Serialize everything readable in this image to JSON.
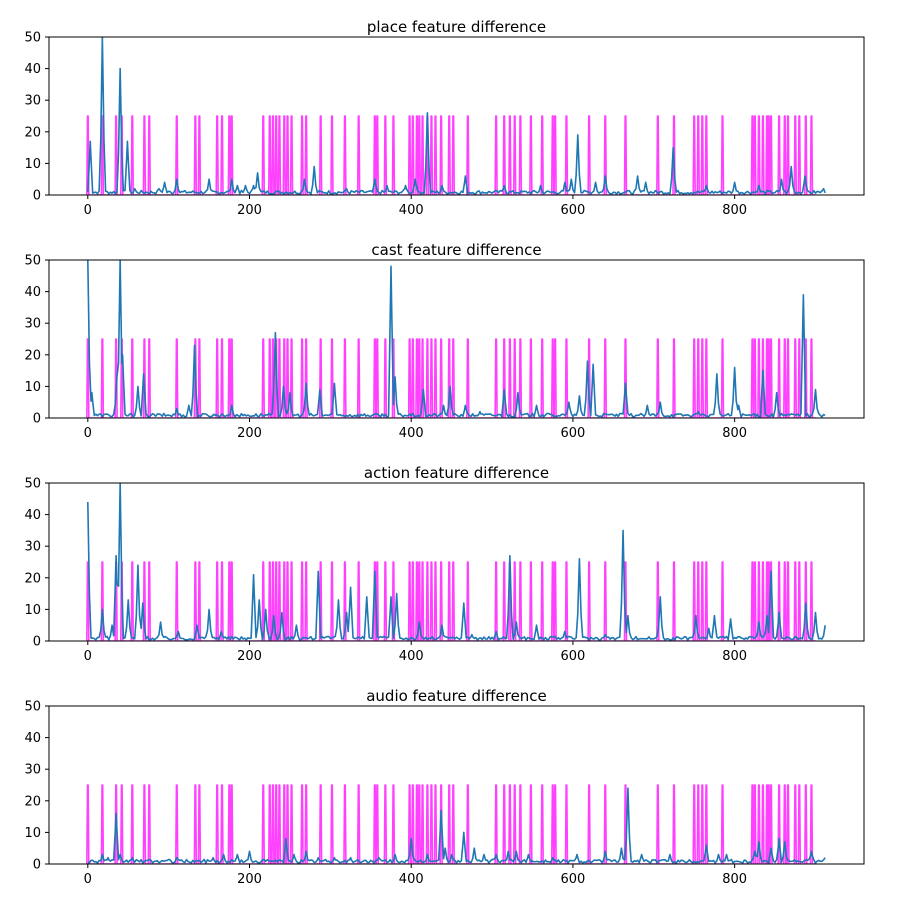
{
  "chart_data": [
    {
      "type": "line",
      "title": "place feature difference",
      "xlim": [
        -48,
        960
      ],
      "ylim": [
        0,
        50
      ],
      "xticks": [
        0,
        200,
        400,
        600,
        800
      ],
      "yticks": [
        0,
        10,
        20,
        30,
        40,
        50
      ],
      "colors": {
        "feature": "#1f77b4",
        "boundary": "#ff00ff"
      },
      "series": [
        {
          "values_role": "feature",
          "x_max": 912,
          "baseline": 0.8,
          "peaks": [
            [
              3,
              17
            ],
            [
              18,
              52
            ],
            [
              40,
              40
            ],
            [
              49,
              17
            ],
            [
              58,
              2
            ],
            [
              88,
              2
            ],
            [
              95,
              4
            ],
            [
              110,
              5
            ],
            [
              150,
              5
            ],
            [
              178,
              5
            ],
            [
              185,
              3
            ],
            [
              195,
              3
            ],
            [
              205,
              3
            ],
            [
              210,
              7
            ],
            [
              268,
              5
            ],
            [
              280,
              9
            ],
            [
              320,
              2
            ],
            [
              355,
              5
            ],
            [
              370,
              3
            ],
            [
              393,
              3
            ],
            [
              405,
              5
            ],
            [
              420,
              26
            ],
            [
              438,
              3
            ],
            [
              467,
              6
            ],
            [
              515,
              3
            ],
            [
              560,
              3
            ],
            [
              590,
              4
            ],
            [
              598,
              5
            ],
            [
              606,
              19
            ],
            [
              628,
              4
            ],
            [
              640,
              6
            ],
            [
              680,
              6
            ],
            [
              690,
              4
            ],
            [
              724,
              15
            ],
            [
              765,
              3
            ],
            [
              800,
              4
            ],
            [
              830,
              3
            ],
            [
              858,
              5
            ],
            [
              870,
              9
            ],
            [
              887,
              6
            ],
            [
              910,
              2
            ]
          ]
        },
        {
          "values_role": "boundary",
          "height": 25,
          "spikes": [
            0,
            18,
            35,
            42,
            55,
            70,
            76,
            110,
            133,
            138,
            160,
            166,
            175,
            178,
            217,
            225,
            229,
            233,
            237,
            243,
            247,
            252,
            265,
            270,
            288,
            302,
            318,
            335,
            355,
            358,
            368,
            378,
            398,
            402,
            407,
            410,
            414,
            420,
            425,
            430,
            437,
            447,
            452,
            470,
            505,
            515,
            522,
            528,
            535,
            548,
            562,
            575,
            578,
            592,
            620,
            640,
            665,
            705,
            725,
            750,
            755,
            760,
            765,
            785,
            822,
            825,
            830,
            835,
            840,
            842,
            845,
            855,
            862,
            866,
            875,
            880,
            888,
            895
          ]
        }
      ]
    },
    {
      "type": "line",
      "title": "cast feature difference",
      "xlim": [
        -48,
        960
      ],
      "ylim": [
        0,
        50
      ],
      "xticks": [
        0,
        200,
        400,
        600,
        800
      ],
      "yticks": [
        0,
        10,
        20,
        30,
        40,
        50
      ],
      "colors": {
        "feature": "#1f77b4",
        "boundary": "#ff00ff"
      },
      "series": [
        {
          "values_role": "feature",
          "x_max": 912,
          "baseline": 0.8,
          "peaks": [
            [
              0,
              52
            ],
            [
              5,
              8
            ],
            [
              36,
              13
            ],
            [
              40,
              52
            ],
            [
              43,
              20
            ],
            [
              62,
              10
            ],
            [
              69,
              14
            ],
            [
              110,
              3
            ],
            [
              125,
              4
            ],
            [
              132,
              23
            ],
            [
              178,
              4
            ],
            [
              232,
              27
            ],
            [
              242,
              10
            ],
            [
              250,
              8
            ],
            [
              270,
              11
            ],
            [
              287,
              9
            ],
            [
              305,
              11
            ],
            [
              375,
              48
            ],
            [
              380,
              13
            ],
            [
              415,
              9
            ],
            [
              440,
              4
            ],
            [
              448,
              10
            ],
            [
              467,
              4
            ],
            [
              485,
              2
            ],
            [
              515,
              9
            ],
            [
              532,
              8
            ],
            [
              555,
              4
            ],
            [
              595,
              5
            ],
            [
              608,
              7
            ],
            [
              618,
              18
            ],
            [
              625,
              17
            ],
            [
              665,
              11
            ],
            [
              692,
              4
            ],
            [
              708,
              5
            ],
            [
              755,
              2
            ],
            [
              778,
              14
            ],
            [
              800,
              16
            ],
            [
              805,
              4
            ],
            [
              835,
              15
            ],
            [
              852,
              8
            ],
            [
              885,
              39
            ],
            [
              900,
              9
            ]
          ]
        },
        {
          "values_role": "boundary",
          "height": 25,
          "spikes": [
            0,
            18,
            35,
            42,
            55,
            70,
            76,
            110,
            133,
            138,
            160,
            166,
            175,
            178,
            217,
            225,
            229,
            233,
            237,
            243,
            247,
            252,
            265,
            270,
            288,
            302,
            318,
            335,
            355,
            358,
            368,
            378,
            398,
            402,
            407,
            410,
            414,
            420,
            425,
            430,
            437,
            447,
            452,
            470,
            505,
            515,
            522,
            528,
            535,
            548,
            562,
            575,
            578,
            592,
            620,
            640,
            665,
            705,
            725,
            750,
            755,
            760,
            765,
            785,
            822,
            825,
            830,
            835,
            840,
            842,
            845,
            855,
            862,
            866,
            875,
            880,
            888,
            895
          ]
        }
      ]
    },
    {
      "type": "line",
      "title": "action feature difference",
      "xlim": [
        -48,
        960
      ],
      "ylim": [
        0,
        50
      ],
      "xticks": [
        0,
        200,
        400,
        600,
        800
      ],
      "yticks": [
        0,
        10,
        20,
        30,
        40,
        50
      ],
      "colors": {
        "feature": "#1f77b4",
        "boundary": "#ff00ff"
      },
      "series": [
        {
          "values_role": "feature",
          "x_max": 912,
          "baseline": 0.8,
          "peaks": [
            [
              0,
              44
            ],
            [
              18,
              10
            ],
            [
              30,
              5
            ],
            [
              35,
              27
            ],
            [
              40,
              52
            ],
            [
              50,
              13
            ],
            [
              62,
              24
            ],
            [
              68,
              12
            ],
            [
              90,
              6
            ],
            [
              112,
              3
            ],
            [
              135,
              5
            ],
            [
              150,
              10
            ],
            [
              165,
              3
            ],
            [
              205,
              21
            ],
            [
              212,
              13
            ],
            [
              220,
              10
            ],
            [
              230,
              8
            ],
            [
              240,
              9
            ],
            [
              258,
              5
            ],
            [
              285,
              22
            ],
            [
              310,
              13
            ],
            [
              320,
              9
            ],
            [
              325,
              17
            ],
            [
              345,
              14
            ],
            [
              355,
              22
            ],
            [
              375,
              14
            ],
            [
              382,
              15
            ],
            [
              410,
              6
            ],
            [
              438,
              5
            ],
            [
              465,
              12
            ],
            [
              475,
              2
            ],
            [
              505,
              3
            ],
            [
              522,
              27
            ],
            [
              530,
              6
            ],
            [
              555,
              5
            ],
            [
              590,
              3
            ],
            [
              608,
              26
            ],
            [
              640,
              2
            ],
            [
              662,
              35
            ],
            [
              668,
              8
            ],
            [
              708,
              14
            ],
            [
              752,
              8
            ],
            [
              768,
              4
            ],
            [
              775,
              8
            ],
            [
              795,
              7
            ],
            [
              830,
              6
            ],
            [
              840,
              8
            ],
            [
              845,
              22
            ],
            [
              855,
              9
            ],
            [
              888,
              12
            ],
            [
              900,
              9
            ],
            [
              912,
              5
            ]
          ]
        },
        {
          "values_role": "boundary",
          "height": 25,
          "spikes": [
            0,
            18,
            35,
            42,
            55,
            70,
            76,
            110,
            133,
            138,
            160,
            166,
            175,
            178,
            217,
            225,
            229,
            233,
            237,
            243,
            247,
            252,
            265,
            270,
            288,
            302,
            318,
            335,
            355,
            358,
            368,
            378,
            398,
            402,
            407,
            410,
            414,
            420,
            425,
            430,
            437,
            447,
            452,
            470,
            505,
            515,
            522,
            528,
            535,
            548,
            562,
            575,
            578,
            592,
            620,
            640,
            665,
            705,
            725,
            750,
            755,
            760,
            765,
            785,
            822,
            825,
            830,
            835,
            840,
            842,
            845,
            855,
            862,
            866,
            875,
            880,
            888,
            895
          ]
        }
      ]
    },
    {
      "type": "line",
      "title": "audio feature difference",
      "xlim": [
        -48,
        960
      ],
      "ylim": [
        0,
        50
      ],
      "xticks": [
        0,
        200,
        400,
        600,
        800
      ],
      "yticks": [
        0,
        10,
        20,
        30,
        40,
        50
      ],
      "colors": {
        "feature": "#1f77b4",
        "boundary": "#ff00ff"
      },
      "series": [
        {
          "values_role": "feature",
          "x_max": 912,
          "baseline": 0.8,
          "peaks": [
            [
              18,
              3
            ],
            [
              25,
              2
            ],
            [
              35,
              16
            ],
            [
              40,
              3
            ],
            [
              55,
              2
            ],
            [
              110,
              2
            ],
            [
              155,
              2
            ],
            [
              168,
              3
            ],
            [
              185,
              3
            ],
            [
              200,
              4
            ],
            [
              245,
              8
            ],
            [
              255,
              3
            ],
            [
              270,
              4
            ],
            [
              285,
              2
            ],
            [
              305,
              2
            ],
            [
              325,
              2
            ],
            [
              360,
              2
            ],
            [
              380,
              3
            ],
            [
              400,
              8
            ],
            [
              420,
              3
            ],
            [
              437,
              17
            ],
            [
              442,
              5
            ],
            [
              450,
              3
            ],
            [
              465,
              10
            ],
            [
              478,
              5
            ],
            [
              490,
              3
            ],
            [
              505,
              3
            ],
            [
              520,
              4
            ],
            [
              530,
              4
            ],
            [
              545,
              3
            ],
            [
              575,
              2
            ],
            [
              605,
              3
            ],
            [
              640,
              4
            ],
            [
              660,
              5
            ],
            [
              668,
              24
            ],
            [
              685,
              3
            ],
            [
              720,
              3
            ],
            [
              765,
              6
            ],
            [
              780,
              3
            ],
            [
              790,
              3
            ],
            [
              825,
              4
            ],
            [
              830,
              7
            ],
            [
              845,
              5
            ],
            [
              855,
              8
            ],
            [
              862,
              7
            ],
            [
              895,
              4
            ],
            [
              912,
              2
            ]
          ]
        },
        {
          "values_role": "boundary",
          "height": 25,
          "spikes": [
            0,
            18,
            35,
            42,
            55,
            70,
            76,
            110,
            133,
            138,
            160,
            166,
            175,
            178,
            217,
            225,
            229,
            233,
            237,
            243,
            247,
            252,
            265,
            270,
            288,
            302,
            318,
            335,
            355,
            358,
            368,
            378,
            398,
            402,
            407,
            410,
            414,
            420,
            425,
            430,
            437,
            447,
            452,
            470,
            505,
            515,
            522,
            528,
            535,
            548,
            562,
            575,
            578,
            592,
            620,
            640,
            665,
            705,
            725,
            750,
            755,
            760,
            765,
            785,
            822,
            825,
            830,
            835,
            840,
            842,
            845,
            855,
            862,
            866,
            875,
            880,
            888,
            895
          ]
        }
      ]
    }
  ]
}
